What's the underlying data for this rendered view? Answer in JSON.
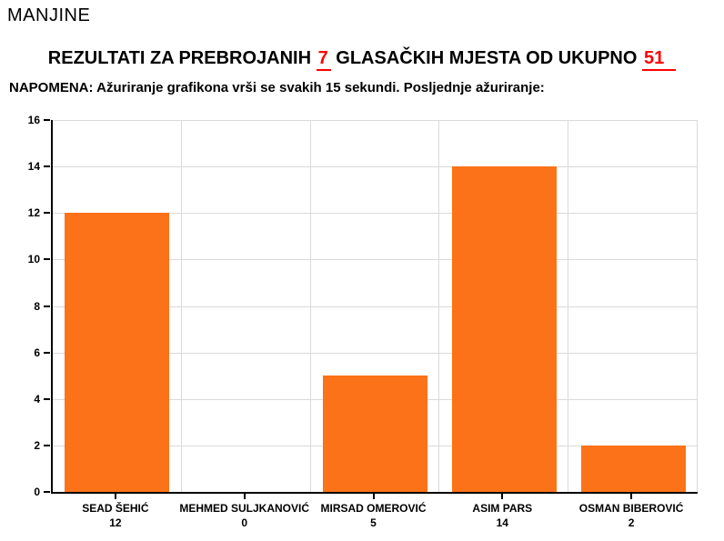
{
  "page": {
    "header": "MANJINE"
  },
  "title": {
    "prefix": "REZULTATI ZA PREBROJANIH",
    "counted": "7",
    "middle": "GLASAČKIH MJESTA OD UKUPNO",
    "total": "51"
  },
  "note": "NAPOMENA: Ažuriranje grafikona vrši se svakih 15 sekundi. Posljednje ažuriranje:",
  "colors": {
    "bar": "#fc7218",
    "grid": "#dadada",
    "axis": "#000000",
    "highlight": "#ff0000",
    "text": "#000000",
    "background": "#ffffff"
  },
  "chart_data": {
    "type": "bar",
    "categories": [
      "SEAD ŠEHIĆ",
      "MEHMED SULJKANOVIĆ",
      "MIRSAD OMEROVIĆ",
      "ASIM PARS",
      "OSMAN BIBEROVIĆ"
    ],
    "values": [
      12,
      0,
      5,
      14,
      2
    ],
    "title": "REZULTATI ZA PREBROJANIH 7 GLASAČKIH MJESTA OD UKUPNO 51",
    "xlabel": "",
    "ylabel": "",
    "ylim": [
      0,
      16
    ],
    "yticks": [
      0,
      2,
      4,
      6,
      8,
      10,
      12,
      14,
      16
    ],
    "grid": true,
    "legend": "none",
    "bar_color": "#fc7218",
    "value_labels": "below x-axis category names"
  }
}
